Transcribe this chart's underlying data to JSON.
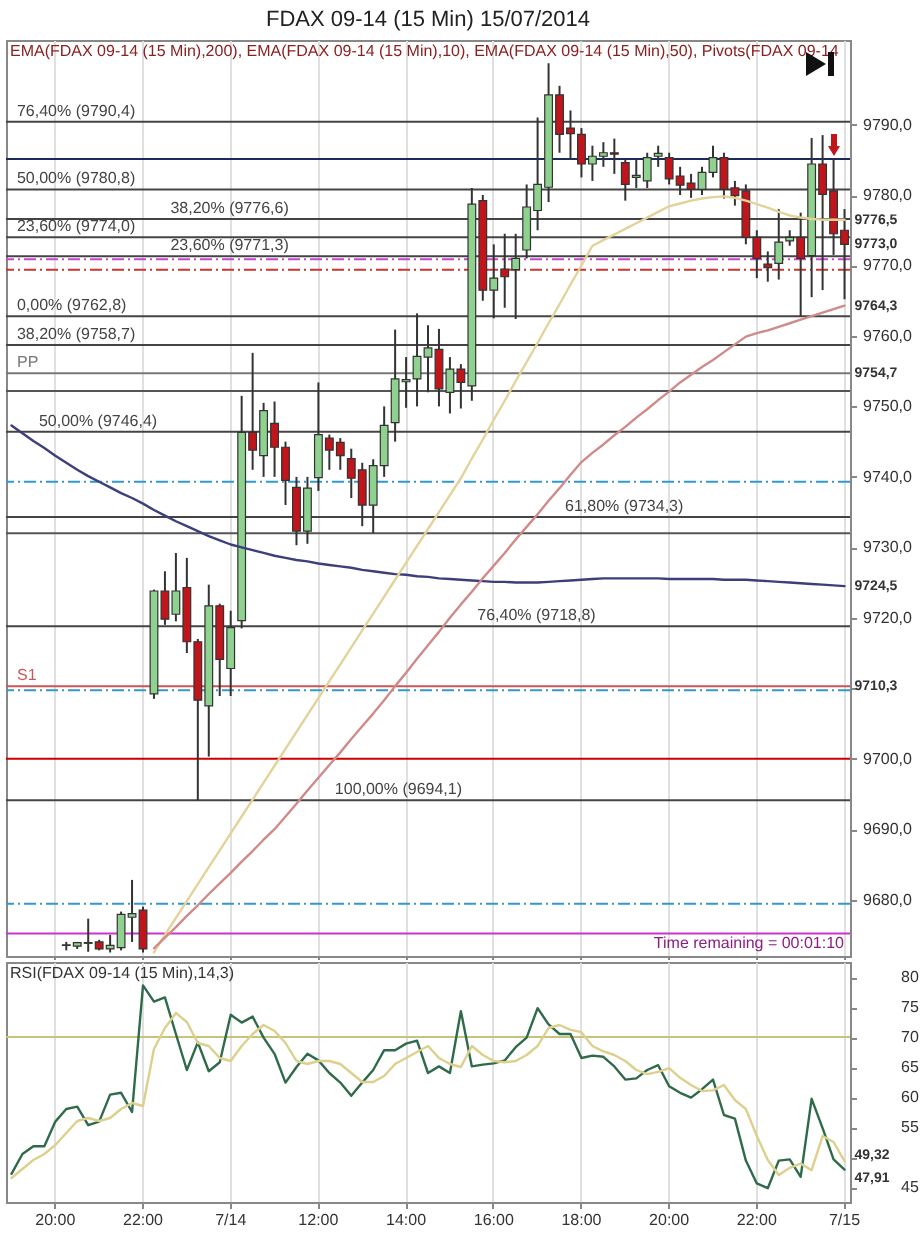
{
  "chart_data": [
    {
      "type": "candlestick",
      "title": "FDAX 09-14 (15 Min)  15/07/2014",
      "categories": [
        null,
        null,
        null,
        null,
        "20:00",
        null,
        null,
        null,
        null,
        null,
        null,
        null,
        "22:00",
        null,
        null,
        null,
        null,
        null,
        null,
        null,
        "7/14",
        null,
        null,
        null,
        null,
        null,
        null,
        null,
        "12:00",
        null,
        null,
        null,
        null,
        null,
        null,
        null,
        "14:00",
        null,
        null,
        null,
        null,
        null,
        null,
        null,
        "16:00",
        null,
        null,
        null,
        null,
        null,
        null,
        null,
        "18:00",
        null,
        null,
        null,
        null,
        null,
        null,
        null,
        "20:00",
        null,
        null,
        null,
        null,
        null,
        null,
        null,
        "22:00",
        null,
        null,
        null,
        null,
        null,
        null,
        null,
        "7/15"
      ],
      "ohlc": [
        null,
        null,
        null,
        null,
        null,
        [
          9673.5,
          9674,
          9672.8,
          9673.6
        ],
        [
          9673.4,
          9674,
          9673,
          9673.9
        ],
        [
          9673.8,
          9677.3,
          9672.6,
          9673.9
        ],
        [
          9674,
          9674.3,
          9672.8,
          9673
        ],
        [
          9673,
          9675,
          9672.5,
          9673.5
        ],
        [
          9673.2,
          9678.3,
          9672.8,
          9677.9
        ],
        [
          9677.5,
          9682.8,
          9674,
          9678
        ],
        [
          9678.5,
          9679,
          9672.5,
          9673
        ],
        [
          9709.2,
          9724,
          9708.5,
          9723.8
        ],
        [
          9723.8,
          9726.6,
          9719,
          9719.8
        ],
        [
          9720.5,
          9729.2,
          9719.5,
          9723.8
        ],
        [
          9724.3,
          9728.5,
          9715,
          9716.6
        ],
        [
          9716.6,
          9717,
          9694.1,
          9708.3
        ],
        [
          9707.5,
          9724.7,
          9700.3,
          9721.7
        ],
        [
          9721.7,
          9722,
          9708.9,
          9714.1
        ],
        [
          9712.8,
          9721,
          9708.9,
          9718.6
        ],
        [
          9719.6,
          9751.5,
          9718.5,
          9746.3
        ],
        [
          9746.3,
          9757.6,
          9741,
          9743.8
        ],
        [
          9743,
          9750.5,
          9740,
          9749.4
        ],
        [
          9747.6,
          9750.7,
          9740,
          9744.2
        ],
        [
          9744.2,
          9745,
          9736,
          9739.5
        ],
        [
          9738.5,
          9740,
          9730.3,
          9732.3
        ],
        [
          9732.3,
          9740,
          9730.5,
          9738.4
        ],
        [
          9739.9,
          9753.4,
          9738,
          9746
        ],
        [
          9745.5,
          9746,
          9741,
          9743.8
        ],
        [
          9744.9,
          9745.5,
          9741,
          9743
        ],
        [
          9742.6,
          9744,
          9737,
          9739.8
        ],
        [
          9741,
          9742,
          9733,
          9736
        ],
        [
          9736,
          9742.5,
          9732,
          9741.6
        ],
        [
          9741.6,
          9750,
          9740,
          9747.3
        ],
        [
          9747.7,
          9760.9,
          9745,
          9753.9
        ],
        [
          9753.5,
          9757,
          9749.8,
          9753.8
        ],
        [
          9753.9,
          9763.2,
          9750,
          9757.1
        ],
        [
          9757,
          9761.5,
          9752,
          9758.3
        ],
        [
          9758.1,
          9761,
          9750,
          9752.5
        ],
        [
          9752,
          9757,
          9749,
          9755.3
        ],
        [
          9755.3,
          9756,
          9749.7,
          9753.4
        ],
        [
          9752.9,
          9781,
          9750.8,
          9778.7
        ],
        [
          9779.2,
          9780,
          9765,
          9766.5
        ],
        [
          9766.5,
          9773,
          9762.5,
          9768.2
        ],
        [
          9769.5,
          9774.5,
          9764,
          9768.4
        ],
        [
          9769.4,
          9774.5,
          9762.4,
          9771
        ],
        [
          9772.2,
          9781.5,
          9771,
          9778.3
        ],
        [
          9777.8,
          9791,
          9775,
          9781.5
        ],
        [
          9781.1,
          9798.7,
          9779,
          9794.2
        ],
        [
          9794.2,
          9795.5,
          9786,
          9788.6
        ],
        [
          9789.5,
          9792,
          9785,
          9788.7
        ],
        [
          9788.6,
          9789.5,
          9782.5,
          9784.4
        ],
        [
          9784.4,
          9787,
          9782,
          9785.5
        ],
        [
          9785.5,
          9787.5,
          9784,
          9786
        ],
        [
          9786,
          9788,
          9783,
          9785.8
        ],
        [
          9784.6,
          9785,
          9779.2,
          9781.5
        ],
        [
          9782.5,
          9785,
          9781,
          9782.8
        ],
        [
          9782,
          9786,
          9781,
          9785.3
        ],
        [
          9785.5,
          9787,
          9784,
          9785.9
        ],
        [
          9785.3,
          9786,
          9781.5,
          9782.3
        ],
        [
          9782.7,
          9784,
          9780,
          9781.4
        ],
        [
          9781.7,
          9783,
          9779.6,
          9780.8
        ],
        [
          9780.8,
          9784,
          9780,
          9783.2
        ],
        [
          9783.2,
          9787,
          9782.5,
          9785.3
        ],
        [
          9785.3,
          9786,
          9779.5,
          9780.8
        ],
        [
          9781,
          9782,
          9778.5,
          9779.9
        ],
        [
          9780.6,
          9781.5,
          9773,
          9774
        ],
        [
          9774,
          9775,
          9768.2,
          9771
        ],
        [
          9770.2,
          9772,
          9767.7,
          9769.7
        ],
        [
          9770.3,
          9778,
          9768,
          9773.3
        ],
        [
          9773.5,
          9775,
          9772.8,
          9774
        ],
        [
          9774,
          9777.5,
          9762.8,
          9771
        ],
        [
          9771.4,
          9788.1,
          9765.5,
          9784.4
        ],
        [
          9784.4,
          9788.5,
          9766.5,
          9780.1
        ],
        [
          9780.6,
          9785,
          9771.5,
          9774.5
        ],
        [
          9775,
          9778,
          9765.2,
          9773
        ]
      ],
      "colors": [
        null,
        null,
        null,
        null,
        null,
        "#8fd18f",
        "#8fd18f",
        "#8fd18f",
        "#c0161b",
        "#8fd18f",
        "#8fd18f",
        "#8fd18f",
        "#c0161b",
        "#8fd18f",
        "#c0161b",
        "#8fd18f",
        "#c0161b",
        "#c0161b",
        "#8fd18f",
        "#c0161b",
        "#8fd18f",
        "#8fd18f",
        "#c0161b",
        "#8fd18f",
        "#c0161b",
        "#c0161b",
        "#c0161b",
        "#8fd18f",
        "#8fd18f",
        "#c0161b",
        "#c0161b",
        "#c0161b",
        "#c0161b",
        "#8fd18f",
        "#8fd18f",
        "#8fd18f",
        "#8fd18f",
        "#8fd18f",
        "#8fd18f",
        "#c0161b",
        "#8fd18f",
        "#c0161b",
        "#8fd18f",
        "#c0161b",
        "#8fd18f",
        "#c0161b",
        "#8fd18f",
        "#8fd18f",
        "#8fd18f",
        "#8fd18f",
        "#c0161b",
        "#c0161b",
        "#c0161b",
        "#8fd18f",
        "#8fd18f",
        "#c0161b",
        "#c0161b",
        "#8fd18f",
        "#8fd18f",
        "#8fd18f",
        "#c0161b",
        "#c0161b",
        "#c0161b",
        "#8fd18f",
        "#8fd18f",
        "#c0161b",
        "#c0161b",
        "#c0161b",
        "#c0161b",
        "#c0161b",
        "#8fd18f",
        "#8fd18f",
        "#c0161b",
        "#8fd18f",
        "#c0161b",
        "#c0161b",
        "#c0161b"
      ],
      "series": [
        {
          "type": "line",
          "color": "#3b3f7a",
          "values": [
            9747.3,
            9746.2,
            9745.1,
            9744.1,
            9743.0,
            9742.0,
            9741.0,
            9740.1,
            9739.3,
            9738.5,
            9737.7,
            9737,
            9736.2,
            9735.3,
            9734.5,
            9733.7,
            9733,
            9732.3,
            9731.6,
            9731,
            9730.4,
            9730,
            9729.6,
            9729.2,
            9728.8,
            9728.5,
            9728.2,
            9728,
            9727.7,
            9727.5,
            9727.3,
            9727.1,
            9726.8,
            9726.6,
            9726.4,
            9726.2,
            9726.1,
            9725.9,
            9725.8,
            9725.6,
            9725.5,
            9725.4,
            9725.3,
            9725.2,
            9725.1,
            9725.1,
            9725,
            9725,
            9725,
            9725.1,
            9725.2,
            9725.3,
            9725.4,
            9725.5,
            9725.6,
            9725.6,
            9725.6,
            9725.6,
            9725.6,
            9725.6,
            9725.5,
            9725.5,
            9725.5,
            9725.5,
            9725.5,
            9725.4,
            9725.4,
            9725.4,
            9725.3,
            9725.2,
            9725.1,
            9725,
            9724.9,
            9724.8,
            9724.7,
            9724.6,
            9724.5
          ]
        },
        {
          "type": "line",
          "color": "#e3d39a",
          "values": [
            null,
            null,
            null,
            null,
            null,
            null,
            null,
            null,
            null,
            null,
            null,
            null,
            null,
            9672.5,
            9675,
            9677.4,
            9679.8,
            9682.2,
            9684.6,
            9687,
            9689.4,
            9691.8,
            9694.2,
            9696.6,
            9699,
            9701.4,
            9703.8,
            9706.2,
            9708.6,
            9711,
            9713.4,
            9715.8,
            9718.2,
            9720.6,
            9723,
            9725.4,
            9727.8,
            9730.2,
            9732.6,
            9735,
            9737.4,
            9739.8,
            9742.6,
            9745.3,
            9748.1,
            9750.8,
            9753.6,
            9756.3,
            9759,
            9761.8,
            9764.5,
            9767.3,
            9770,
            9772.8,
            9773.6,
            9774.4,
            9775.2,
            9776,
            9776.8,
            9777.6,
            9778.4,
            9778.8,
            9779.2,
            9779.5,
            9779.7,
            9779.8,
            9779.6,
            9779.2,
            9778.7,
            9778.2,
            9777.6,
            9777.1,
            9776.8,
            9776.6,
            9776.5,
            9776.5,
            9776.5
          ]
        },
        {
          "type": "line",
          "color": "#d08a8a",
          "values": [
            null,
            null,
            null,
            null,
            null,
            null,
            null,
            null,
            null,
            null,
            null,
            null,
            null,
            9673.1,
            9674.6,
            9676.1,
            9677.7,
            9679.2,
            9680.8,
            9682.3,
            9683.8,
            9685.4,
            9686.9,
            9688.5,
            9690,
            9691.8,
            9693.6,
            9695.5,
            9697.3,
            9699.1,
            9700.9,
            9702.8,
            9704.6,
            9706.4,
            9708.3,
            9710.3,
            9712.2,
            9714.2,
            9716.1,
            9718,
            9720,
            9721.9,
            9723.7,
            9725.6,
            9727.4,
            9729.2,
            9731.1,
            9732.9,
            9734.7,
            9736.6,
            9738.4,
            9740.3,
            9742.1,
            9743.4,
            9744.6,
            9745.9,
            9747.1,
            9748.4,
            9749.6,
            9750.9,
            9752.1,
            9753.4,
            9754.5,
            9755.6,
            9756.6,
            9757.7,
            9758.8,
            9759.9,
            9760.4,
            9760.8,
            9761.3,
            9761.8,
            9762.3,
            9762.8,
            9763.3,
            9763.8,
            9764.3
          ]
        }
      ],
      "ylim": [
        9672,
        9802
      ],
      "yticks": [
        {
          "value": 9680,
          "label": "9680,0"
        },
        {
          "value": 9690,
          "label": "9690,0"
        },
        {
          "value": 9700,
          "label": "9700,0"
        },
        {
          "value": 9710,
          "label": null
        },
        {
          "value": 9720,
          "label": "9720,0"
        },
        {
          "value": 9730,
          "label": "9730,0"
        },
        {
          "value": 9740,
          "label": "9740,0"
        },
        {
          "value": 9750,
          "label": "9750,0"
        },
        {
          "value": 9760,
          "label": "9760,0"
        },
        {
          "value": 9770,
          "label": "9770,0"
        },
        {
          "value": 9780,
          "label": "9780,0"
        },
        {
          "value": 9790,
          "label": "9790,0"
        }
      ],
      "ref_lines": [
        {
          "axis": "y",
          "value": 9785.1,
          "color": "#1f2a5c"
        },
        {
          "axis": "y",
          "value": 9752.2,
          "color": "#555555"
        },
        {
          "axis": "y",
          "value": 9732.0,
          "color": "#555555"
        },
        {
          "axis": "y",
          "value": 9700.0,
          "color": "#cc0000"
        },
        {
          "axis": "y",
          "value": 9675.2,
          "color": "#cc33cc"
        },
        {
          "axis": "y",
          "value": 9770.9,
          "color": "#cc44cc",
          "line_style": "dashed"
        },
        {
          "axis": "y",
          "value": 9769.4,
          "color": "#cc3333",
          "line_style": "dashed"
        },
        {
          "axis": "y",
          "value": 9739.3,
          "color": "#3399cc",
          "line_style": "dashed"
        },
        {
          "axis": "y",
          "value": 9709.7,
          "color": "#3399cc",
          "line_style": "dashed"
        },
        {
          "axis": "y",
          "value": 9679.4,
          "color": "#3399cc",
          "line_style": "dashed"
        },
        {
          "axis": "y",
          "value": 9754.7,
          "label": "PP",
          "color": "#777777"
        },
        {
          "axis": "y",
          "value": 9710.3,
          "label": "S1",
          "color": "#cc5555"
        },
        {
          "axis": "y",
          "value": 9774.0,
          "label": "23,60% (9774,0)",
          "color": "#444444"
        },
        {
          "axis": "y",
          "value": 9758.7,
          "label": "38,20% (9758,7)",
          "color": "#444444"
        },
        {
          "axis": "y",
          "value": 9746.4,
          "label": "50,00% (9746,4)",
          "color": "#444444"
        },
        {
          "axis": "y",
          "value": 9734.3,
          "label": "61,80% (9734,3)",
          "color": "#444444"
        },
        {
          "axis": "y",
          "value": 9718.8,
          "label": "76,40% (9718,8)",
          "color": "#444444"
        },
        {
          "axis": "y",
          "value": 9694.1,
          "label": "100,00% (9694,1)",
          "color": "#444444"
        },
        {
          "axis": "y",
          "value": 9762.8,
          "label": "0,00% (9762,8)",
          "color": "#444444"
        },
        {
          "axis": "y",
          "value": 9771.3,
          "label": "23,60% (9771,3)",
          "color": "#444444"
        },
        {
          "axis": "y",
          "value": 9776.6,
          "label": "38,20% (9776,6)",
          "color": "#444444"
        },
        {
          "axis": "y",
          "value": 9780.8,
          "label": "50,00% (9780,8)",
          "color": "#444444"
        },
        {
          "axis": "y",
          "value": 9790.4,
          "label": "76,40% (9790,4)",
          "color": "#444444"
        }
      ],
      "annotations": [
        "EMA(FDAX 09-14 (15 Min),200), EMA(FDAX 09-14 (15 Min),10), EMA(FDAX 09-14 (15 Min),50), Pivots(FDAX 09-14",
        "Time remaining = 00:01:10",
        {
          "text": "9776,5",
          "x": "7/15",
          "y": 9776.5
        },
        {
          "text": "9773,0",
          "x": "7/15",
          "y": 9773.0
        },
        {
          "text": "9764,3",
          "x": "7/15",
          "y": 9764.3
        },
        {
          "text": "9754,7",
          "x": "7/15",
          "y": 9754.7
        },
        {
          "text": "9724,5",
          "x": "7/15",
          "y": 9724.5
        },
        {
          "text": "9710,3",
          "x": "7/15",
          "y": 9710.3
        }
      ],
      "grid": "x",
      "tick_labels": "y"
    },
    {
      "type": "line",
      "title": "RSI(FDAX 09-14 (15 Min),14,3)",
      "categories": [
        null,
        null,
        null,
        null,
        "20:00",
        null,
        null,
        null,
        null,
        null,
        null,
        null,
        "22:00",
        null,
        null,
        null,
        null,
        null,
        null,
        null,
        "7/14",
        null,
        null,
        null,
        null,
        null,
        null,
        null,
        "12:00",
        null,
        null,
        null,
        null,
        null,
        null,
        null,
        "14:00",
        null,
        null,
        null,
        null,
        null,
        null,
        null,
        "16:00",
        null,
        null,
        null,
        null,
        null,
        null,
        null,
        "18:00",
        null,
        null,
        null,
        null,
        null,
        null,
        null,
        "20:00",
        null,
        null,
        null,
        null,
        null,
        null,
        null,
        "22:00",
        null,
        null,
        null,
        null,
        null,
        null,
        null,
        "7/15"
      ],
      "series": [
        {
          "color": "#2f6b4a",
          "values": [
            47.2,
            50.5,
            51.8,
            51.8,
            55.9,
            58,
            58.4,
            55.3,
            55.9,
            60.4,
            60.7,
            57.5,
            78.6,
            75.9,
            76.6,
            70.5,
            64.5,
            69.1,
            64.3,
            65.8,
            73.7,
            72.4,
            73.4,
            69.9,
            67.2,
            62.4,
            65,
            67.2,
            66.1,
            64,
            62.4,
            60.2,
            62.4,
            64.5,
            67.8,
            67.8,
            68.9,
            69.4,
            64,
            65.1,
            64,
            74.3,
            65.1,
            65.4,
            65.6,
            66.1,
            68.3,
            69.9,
            74.8,
            72.1,
            70.5,
            70.5,
            66.5,
            66.9,
            66.7,
            65.1,
            62.9,
            63.1,
            64.5,
            65.3,
            61.8,
            60.7,
            59.9,
            61.3,
            62.9,
            57,
            56.4,
            49.4,
            45.6,
            44.8,
            49.4,
            49.6,
            46.7,
            59.7,
            54.8,
            49.6,
            47.9
          ]
        },
        {
          "color": "#dcd08c",
          "values": [
            46.5,
            48,
            49.5,
            50.5,
            52,
            54,
            56,
            56.5,
            56,
            56.5,
            58,
            59,
            58.5,
            68,
            71.5,
            74,
            72.5,
            69,
            68.5,
            66.5,
            66,
            68.5,
            70.5,
            72,
            71,
            69,
            66,
            65.5,
            66,
            66,
            65.5,
            64,
            62.5,
            62.5,
            63.5,
            65.5,
            66.5,
            67.5,
            68.5,
            66.5,
            65.5,
            65,
            68.5,
            67,
            66,
            65.8,
            66,
            67,
            68.5,
            71.5,
            72,
            71.2,
            70.8,
            68.5,
            67.6,
            67,
            66,
            64.5,
            63.8,
            64.2,
            64.8,
            63.2,
            62,
            61,
            61.1,
            62,
            59.5,
            58,
            53.5,
            49.5,
            47,
            48.2,
            48.9,
            47.8,
            53.5,
            52.5,
            49.3
          ]
        }
      ],
      "ylim": [
        42.5,
        82.5
      ],
      "yticks": [
        45,
        {
          "value": 50,
          "label": null
        },
        55,
        60,
        65,
        70,
        75,
        80
      ],
      "ref_lines": [
        {
          "axis": "y",
          "value": 70,
          "color": "#c8c27a"
        }
      ],
      "annotations": [
        {
          "text": "49,32",
          "x": "7/15",
          "y": 49.3
        },
        {
          "text": "47,91",
          "x": "7/15",
          "y": 47.9
        }
      ],
      "grid": "x"
    }
  ]
}
